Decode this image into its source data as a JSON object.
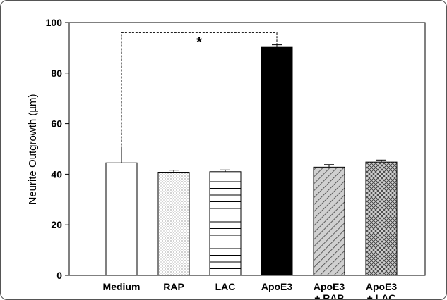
{
  "chart_data": {
    "type": "bar",
    "ylabel": "Neurite Outgrowth (µm)",
    "ylim": [
      0,
      100
    ],
    "yticks": [
      "0",
      "20",
      "40",
      "60",
      "80",
      "100"
    ],
    "categories": [
      {
        "line1": "Medium",
        "line2": ""
      },
      {
        "line1": "RAP",
        "line2": ""
      },
      {
        "line1": "LAC",
        "line2": ""
      },
      {
        "line1": "ApoE3",
        "line2": ""
      },
      {
        "line1": "ApoE3",
        "line2": "+ RAP"
      },
      {
        "line1": "ApoE3",
        "line2": "+ LAC"
      }
    ],
    "values": [
      44.5,
      40.8,
      41.0,
      90.2,
      42.8,
      44.8
    ],
    "errors": [
      5.5,
      0.8,
      0.7,
      1.0,
      1.0,
      0.8
    ],
    "patterns": [
      "none",
      "dots",
      "horizontal",
      "solid",
      "diag",
      "cross"
    ],
    "significance": {
      "from": 0,
      "to": 3,
      "label": "*",
      "y": 96
    }
  }
}
